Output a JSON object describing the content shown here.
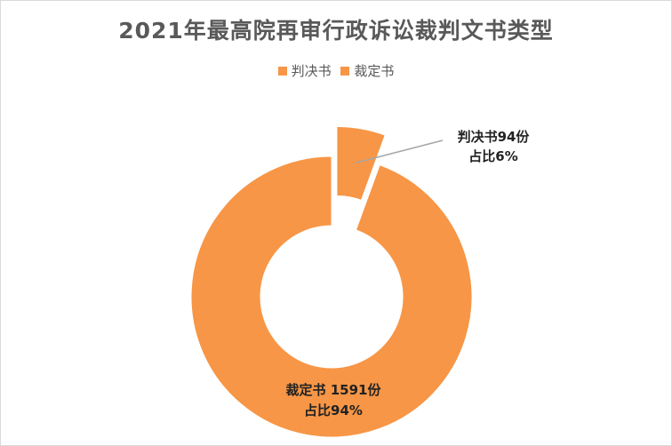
{
  "chart_data": {
    "type": "pie",
    "title": "2021年最高院再审行政诉讼裁判文书类型",
    "legend": {
      "placement": "top-center"
    },
    "slices": [
      {
        "name": "判决书",
        "value": 94,
        "percent": 6,
        "label_line1": "判决书94份",
        "label_line2": "占比6%"
      },
      {
        "name": "裁定书",
        "value": 1591,
        "percent": 94,
        "label_line1": "裁定书 1591份",
        "label_line2": "占比94%"
      }
    ],
    "colors": {
      "slice": "#F79646",
      "leader_line": "#A6A6A6",
      "border": "#D9D9D9"
    }
  }
}
